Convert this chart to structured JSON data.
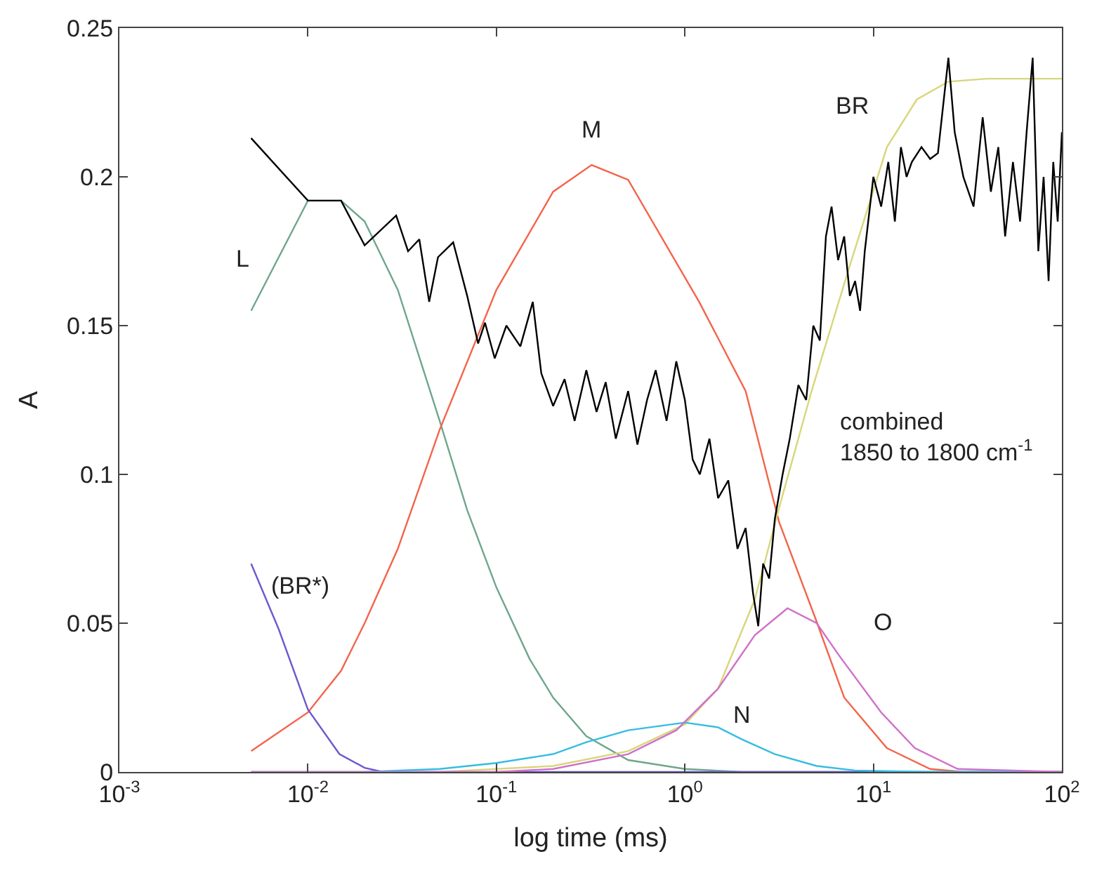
{
  "chart_data": {
    "type": "line",
    "xlabel": "log time (ms)",
    "ylabel": "A",
    "log": "x",
    "xlim": [
      0.001,
      100
    ],
    "xticks": [
      {
        "value": 0.001,
        "label": "10$^{-3}$"
      },
      {
        "value": 0.01,
        "label": "10$^{-2}$"
      },
      {
        "value": 0.1,
        "label": "10$^{-1}$"
      },
      {
        "value": 1,
        "label": "10$^{0}$"
      },
      {
        "value": 10,
        "label": "10$^{1}$"
      },
      {
        "value": 100,
        "label": "10$^{2}$"
      }
    ],
    "ylim": [
      0,
      0.25
    ],
    "yticks": [
      0,
      0.05,
      0.1,
      0.15,
      0.2,
      0.25
    ],
    "legend": false,
    "marker": "none",
    "line_style": "solid",
    "series": [
      {
        "name": "L",
        "color": "#6fa68c",
        "x": [
          0.005,
          0.01,
          0.015,
          0.02,
          0.03,
          0.05,
          0.07,
          0.1,
          0.15,
          0.2,
          0.3,
          0.5,
          1,
          2,
          100
        ],
        "values": [
          0.155,
          0.192,
          0.192,
          0.185,
          0.162,
          0.118,
          0.088,
          0.062,
          0.038,
          0.025,
          0.012,
          0.004,
          0.001,
          0,
          0
        ]
      },
      {
        "name": "M",
        "color": "#f4644a",
        "x": [
          0.005,
          0.01,
          0.015,
          0.02,
          0.03,
          0.05,
          0.1,
          0.2,
          0.32,
          0.5,
          1.19,
          2.1,
          3.16,
          4.9,
          7,
          11.8,
          20,
          30,
          100
        ],
        "values": [
          0.007,
          0.02,
          0.034,
          0.05,
          0.075,
          0.115,
          0.162,
          0.195,
          0.204,
          0.199,
          0.158,
          0.128,
          0.084,
          0.052,
          0.025,
          0.008,
          0.001,
          0,
          0
        ]
      },
      {
        "name": "BR",
        "color": "#d8d67a",
        "x": [
          0.005,
          0.05,
          0.1,
          0.2,
          0.5,
          1,
          1.5,
          2.35,
          3.2,
          4.7,
          7.4,
          11.8,
          17,
          25,
          40,
          100
        ],
        "values": [
          0,
          0,
          0.001,
          0.002,
          0.007,
          0.016,
          0.028,
          0.058,
          0.09,
          0.128,
          0.169,
          0.21,
          0.226,
          0.232,
          0.233,
          0.233
        ]
      },
      {
        "name": "(BR*)",
        "color": "#6a5acd",
        "x": [
          0.005,
          0.007,
          0.01,
          0.0147,
          0.02,
          0.025,
          100
        ],
        "values": [
          0.07,
          0.048,
          0.021,
          0.006,
          0.0014,
          0,
          0
        ]
      },
      {
        "name": "N",
        "color": "#35bde0",
        "x": [
          0.005,
          0.02,
          0.05,
          0.1,
          0.2,
          0.3,
          0.5,
          1,
          1.5,
          2,
          3,
          5,
          8,
          20,
          100
        ],
        "values": [
          0,
          0,
          0.001,
          0.003,
          0.006,
          0.01,
          0.014,
          0.0166,
          0.015,
          0.011,
          0.006,
          0.002,
          0.0005,
          0,
          0
        ]
      },
      {
        "name": "O",
        "color": "#d070c8",
        "x": [
          0.005,
          0.1,
          0.2,
          0.5,
          0.9,
          1.5,
          2.35,
          3.5,
          5,
          6.6,
          11,
          16.6,
          28,
          100
        ],
        "values": [
          0,
          0,
          0.001,
          0.006,
          0.014,
          0.028,
          0.046,
          0.055,
          0.05,
          0.039,
          0.02,
          0.008,
          0.001,
          0
        ]
      },
      {
        "name": "combined\n1850 to 1800 cm$^{-1}$",
        "color": "#000000",
        "x": [
          0.005,
          0.01,
          0.015,
          0.02,
          0.0294,
          0.034,
          0.039,
          0.044,
          0.049,
          0.059,
          0.07,
          0.08,
          0.087,
          0.098,
          0.113,
          0.134,
          0.156,
          0.173,
          0.2,
          0.23,
          0.26,
          0.3,
          0.34,
          0.38,
          0.43,
          0.5,
          0.56,
          0.63,
          0.7,
          0.8,
          0.9,
          1,
          1.1,
          1.2,
          1.35,
          1.5,
          1.7,
          1.9,
          2.1,
          2.3,
          2.45,
          2.6,
          2.8,
          3,
          3.3,
          3.6,
          4,
          4.4,
          4.8,
          5.2,
          5.6,
          6,
          6.5,
          7,
          7.5,
          8,
          8.5,
          9,
          10,
          11,
          12,
          13,
          14,
          15,
          16,
          18,
          20,
          22,
          25,
          27,
          30,
          34,
          38,
          42,
          46,
          50,
          55,
          60,
          65,
          70,
          75,
          80,
          85,
          90,
          95,
          100
        ],
        "values": [
          0.213,
          0.192,
          0.192,
          0.177,
          0.187,
          0.175,
          0.179,
          0.158,
          0.173,
          0.178,
          0.16,
          0.144,
          0.151,
          0.139,
          0.15,
          0.143,
          0.158,
          0.134,
          0.123,
          0.132,
          0.118,
          0.135,
          0.121,
          0.131,
          0.112,
          0.128,
          0.11,
          0.125,
          0.135,
          0.118,
          0.138,
          0.125,
          0.105,
          0.1,
          0.112,
          0.092,
          0.098,
          0.075,
          0.082,
          0.06,
          0.049,
          0.07,
          0.065,
          0.085,
          0.1,
          0.112,
          0.13,
          0.125,
          0.15,
          0.145,
          0.18,
          0.19,
          0.172,
          0.18,
          0.16,
          0.165,
          0.155,
          0.175,
          0.2,
          0.19,
          0.205,
          0.185,
          0.21,
          0.2,
          0.205,
          0.21,
          0.206,
          0.208,
          0.24,
          0.215,
          0.2,
          0.19,
          0.22,
          0.195,
          0.21,
          0.18,
          0.205,
          0.185,
          0.215,
          0.24,
          0.175,
          0.2,
          0.165,
          0.205,
          0.185,
          0.215
        ]
      }
    ]
  }
}
